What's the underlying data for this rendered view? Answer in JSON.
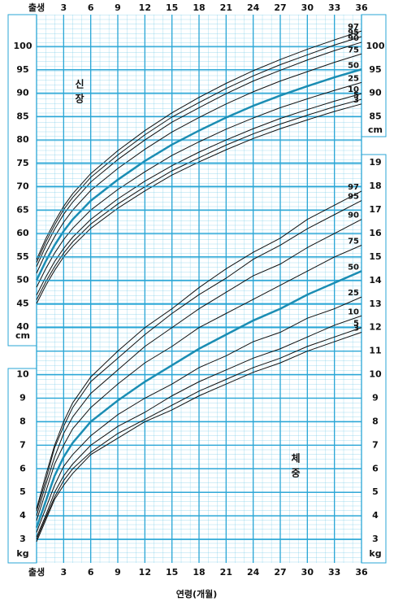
{
  "chart_data": [
    {
      "type": "line",
      "title": "신장",
      "xlabel": "연령(개월)",
      "x": [
        0,
        1,
        2,
        3,
        4,
        6,
        9,
        12,
        15,
        18,
        21,
        24,
        27,
        30,
        33,
        36
      ],
      "xlim": [
        0,
        36
      ],
      "xticks": [
        {
          "value": 0,
          "label": "출생"
        },
        3,
        6,
        9,
        12,
        15,
        18,
        21,
        24,
        27,
        30,
        33,
        36
      ],
      "ylim": [
        40,
        106.8
      ],
      "yticks": [
        40,
        45,
        50,
        55,
        60,
        65,
        70,
        75,
        80,
        85,
        90,
        95,
        100
      ],
      "y_unit": "cm",
      "y2lim": [
        40,
        106.8
      ],
      "y2ticks": [
        85,
        90,
        95,
        100
      ],
      "y2_unit": "cm",
      "grid": true,
      "line_width": 1,
      "series": [
        {
          "name": "97",
          "color": "#111111",
          "values": [
            54.4,
            58.8,
            62.5,
            65.8,
            68.5,
            72.8,
            77.7,
            82.0,
            85.8,
            89.1,
            92.1,
            94.8,
            97.2,
            99.4,
            101.4,
            103.3
          ]
        },
        {
          "name": "95",
          "color": "#111111",
          "values": [
            53.8,
            58.1,
            61.8,
            65.1,
            67.7,
            72.0,
            76.8,
            81.1,
            84.9,
            88.0,
            91.0,
            93.7,
            96.1,
            98.2,
            100.3,
            102.1
          ]
        },
        {
          "name": "90",
          "color": "#111111",
          "values": [
            52.9,
            57.2,
            60.9,
            64.1,
            66.7,
            71.0,
            75.8,
            80.0,
            83.8,
            86.9,
            89.9,
            92.6,
            94.9,
            97.1,
            99.1,
            100.9
          ]
        },
        {
          "name": "75",
          "color": "#111111",
          "values": [
            51.5,
            55.7,
            59.3,
            62.4,
            65.0,
            69.2,
            73.9,
            78.0,
            81.7,
            84.8,
            87.7,
            90.3,
            92.6,
            94.6,
            96.6,
            98.4
          ]
        },
        {
          "name": "50",
          "color": "#1b8db3",
          "line_width": 2.5,
          "values": [
            50.0,
            54.0,
            57.5,
            60.5,
            63.0,
            67.0,
            71.5,
            75.5,
            79.0,
            82.0,
            84.8,
            87.3,
            89.5,
            91.5,
            93.4,
            95.1
          ]
        },
        {
          "name": "25",
          "color": "#111111",
          "values": [
            48.5,
            52.4,
            55.8,
            58.7,
            61.1,
            65.0,
            69.4,
            73.2,
            76.7,
            79.6,
            82.3,
            84.7,
            86.9,
            88.8,
            90.6,
            92.3
          ]
        },
        {
          "name": "10",
          "color": "#111111",
          "values": [
            46.8,
            50.6,
            54.0,
            56.8,
            59.2,
            63.0,
            67.4,
            71.2,
            74.5,
            77.4,
            80.0,
            82.4,
            84.6,
            86.5,
            88.3,
            89.9
          ]
        },
        {
          "name": "5",
          "color": "#111111",
          "values": [
            45.8,
            49.6,
            52.9,
            55.8,
            58.2,
            62.0,
            66.3,
            70.0,
            73.4,
            76.2,
            78.9,
            81.3,
            83.4,
            85.3,
            87.1,
            88.7
          ]
        },
        {
          "name": "3",
          "color": "#111111",
          "values": [
            45.0,
            48.8,
            52.1,
            55.0,
            57.3,
            61.1,
            65.4,
            69.1,
            72.5,
            75.3,
            77.9,
            80.3,
            82.4,
            84.3,
            86.1,
            87.7
          ]
        }
      ]
    },
    {
      "type": "line",
      "title": "체중",
      "x": [
        0,
        1,
        2,
        3,
        4,
        6,
        9,
        12,
        15,
        18,
        21,
        24,
        27,
        30,
        33,
        36
      ],
      "xlim": [
        0,
        36
      ],
      "xticks": [
        {
          "value": 0,
          "label": "출생"
        },
        3,
        6,
        9,
        12,
        15,
        18,
        21,
        24,
        27,
        30,
        33,
        36
      ],
      "ylim": [
        2,
        25.3
      ],
      "yticks": [
        3,
        4,
        5,
        6,
        7,
        8,
        9,
        10
      ],
      "y_unit": "kg",
      "y2lim": [
        2,
        25.3
      ],
      "y2ticks": [
        3,
        4,
        5,
        6,
        7,
        8,
        9,
        10,
        11,
        12,
        13,
        14,
        15,
        16,
        17,
        18,
        19
      ],
      "y2_unit": "kg",
      "grid": true,
      "line_width": 1,
      "series": [
        {
          "name": "97",
          "color": "#111111",
          "values": [
            4.3,
            5.7,
            7.0,
            8.0,
            8.8,
            9.9,
            11.0,
            12.0,
            12.8,
            13.7,
            14.5,
            15.2,
            15.8,
            16.6,
            17.2,
            17.8
          ]
        },
        {
          "name": "95",
          "color": "#111111",
          "values": [
            4.2,
            5.5,
            6.9,
            7.8,
            8.6,
            9.7,
            10.7,
            11.7,
            12.6,
            13.4,
            14.1,
            14.9,
            15.5,
            16.2,
            16.8,
            17.4
          ]
        },
        {
          "name": "90",
          "color": "#111111",
          "values": [
            4.0,
            5.3,
            6.5,
            7.5,
            8.2,
            9.2,
            10.2,
            11.2,
            12.0,
            12.8,
            13.5,
            14.2,
            14.7,
            15.4,
            16.0,
            16.6
          ]
        },
        {
          "name": "75",
          "color": "#111111",
          "values": [
            3.8,
            5.0,
            6.2,
            7.0,
            7.7,
            8.6,
            9.6,
            10.5,
            11.2,
            12.0,
            12.6,
            13.2,
            13.8,
            14.4,
            15.0,
            15.5
          ]
        },
        {
          "name": "50",
          "color": "#1b8db3",
          "line_width": 2.5,
          "values": [
            3.5,
            4.6,
            5.7,
            6.5,
            7.1,
            8.0,
            8.9,
            9.7,
            10.4,
            11.1,
            11.7,
            12.3,
            12.8,
            13.4,
            13.9,
            14.4
          ]
        },
        {
          "name": "25",
          "color": "#111111",
          "values": [
            3.3,
            4.3,
            5.3,
            6.1,
            6.6,
            7.4,
            8.3,
            9.0,
            9.6,
            10.3,
            10.8,
            11.4,
            11.8,
            12.4,
            12.8,
            13.3
          ]
        },
        {
          "name": "10",
          "color": "#111111",
          "values": [
            3.1,
            4.0,
            5.0,
            5.7,
            6.2,
            7.0,
            7.8,
            8.4,
            9.1,
            9.7,
            10.2,
            10.7,
            11.1,
            11.6,
            12.1,
            12.5
          ]
        },
        {
          "name": "5",
          "color": "#111111",
          "values": [
            3.0,
            3.9,
            4.8,
            5.5,
            6.0,
            6.7,
            7.5,
            8.1,
            8.7,
            9.3,
            9.8,
            10.3,
            10.7,
            11.2,
            11.6,
            12.0
          ]
        },
        {
          "name": "3",
          "color": "#111111",
          "values": [
            2.9,
            3.8,
            4.7,
            5.3,
            5.8,
            6.6,
            7.3,
            8.0,
            8.5,
            9.1,
            9.6,
            10.1,
            10.5,
            11.0,
            11.4,
            11.8
          ]
        }
      ]
    }
  ]
}
